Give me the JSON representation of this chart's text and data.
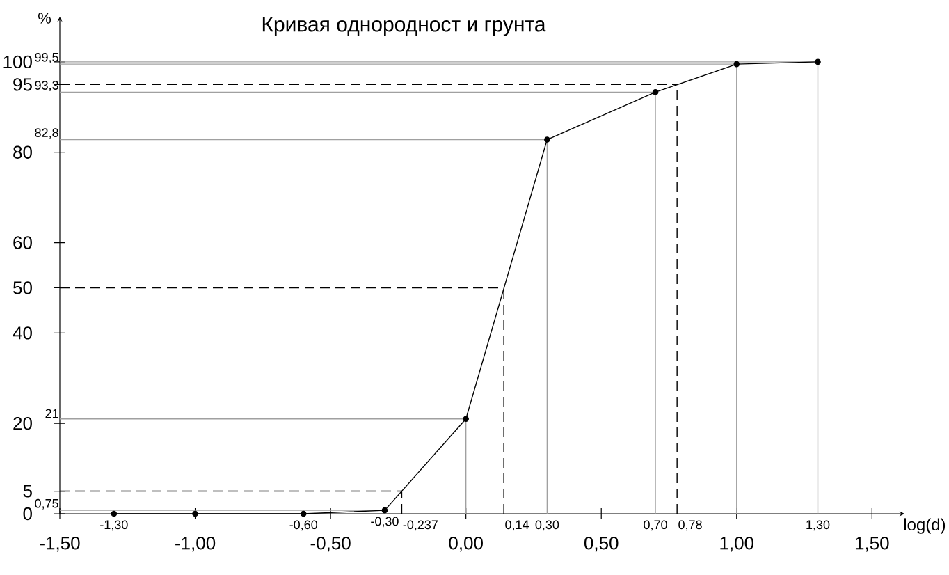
{
  "chart_data": {
    "type": "line",
    "title": "Кривая однородност и грунта",
    "xlabel": "log(d)",
    "ylabel": "%",
    "x": [
      -1.3,
      -1.0,
      -0.6,
      -0.3,
      0.0,
      0.3,
      0.7,
      1.0,
      1.3
    ],
    "series": [
      {
        "color": "#000000",
        "values": [
          0,
          0,
          0,
          0.75,
          21,
          82.8,
          93.3,
          99.5,
          100
        ]
      }
    ],
    "xlim": [
      -1.5,
      1.62
    ],
    "ylim": [
      0,
      110
    ],
    "annotations": [
      {
        "text": "-1,30",
        "x": -1.3,
        "y": 0
      },
      {
        "text": "-0,60",
        "x": -0.6,
        "y": 0
      },
      {
        "text": "-0,30",
        "x": -0.3,
        "y": 0.75
      }
    ],
    "xticks": [
      {
        "value": -1.5,
        "label": "-1,50"
      },
      {
        "value": -1.0,
        "label": "-1,00"
      },
      {
        "value": -0.5,
        "label": "-0,50"
      },
      {
        "value": 0.0,
        "label": "0,00"
      },
      {
        "value": 0.5,
        "label": "0,50"
      },
      {
        "value": 1.0,
        "label": "1,00"
      },
      {
        "value": 1.5,
        "label": "1,50"
      }
    ],
    "yticks": [
      0,
      5,
      20,
      40,
      50,
      60,
      80,
      95,
      100
    ],
    "marker": "circle",
    "line_style": "solid",
    "ref_lines": [
      {
        "axis": "y",
        "value": 0.75,
        "label": "0,75",
        "color": "#a0a0a0",
        "line_style": "solid"
      },
      {
        "axis": "y",
        "value": 21,
        "label": "21",
        "color": "#a0a0a0",
        "line_style": "solid"
      },
      {
        "axis": "y",
        "value": 82.8,
        "label": "82,8",
        "color": "#a0a0a0",
        "line_style": "solid"
      },
      {
        "axis": "y",
        "value": 93.3,
        "label": "93,3",
        "color": "#a0a0a0",
        "line_style": "solid"
      },
      {
        "axis": "y",
        "value": 99.5,
        "label": "99,5",
        "color": "#a0a0a0",
        "line_style": "solid"
      },
      {
        "axis": "y",
        "value": 100,
        "color": "#a0a0a0",
        "line_style": "solid"
      },
      {
        "axis": "y",
        "value": 5,
        "color": "#000000",
        "line_style": "dashed"
      },
      {
        "axis": "y",
        "value": 50,
        "color": "#000000",
        "line_style": "dashed"
      },
      {
        "axis": "y",
        "value": 95,
        "color": "#000000",
        "line_style": "dashed"
      },
      {
        "axis": "x",
        "value": 0.0,
        "color": "#a0a0a0",
        "line_style": "solid"
      },
      {
        "axis": "x",
        "value": 0.3,
        "label": "0,30",
        "color": "#a0a0a0",
        "line_style": "solid"
      },
      {
        "axis": "x",
        "value": 0.7,
        "label": "0,70",
        "color": "#a0a0a0",
        "line_style": "solid"
      },
      {
        "axis": "x",
        "value": 1.0,
        "color": "#a0a0a0",
        "line_style": "solid"
      },
      {
        "axis": "x",
        "value": 1.3,
        "label": "1,30",
        "color": "#a0a0a0",
        "line_style": "solid"
      },
      {
        "axis": "x",
        "value": -0.237,
        "label": "-0,237",
        "color": "#000000",
        "line_style": "dashed"
      },
      {
        "axis": "x",
        "value": 0.14,
        "label": "0,14",
        "color": "#000000",
        "line_style": "dashed"
      },
      {
        "axis": "x",
        "value": 0.78,
        "label": "0,78",
        "color": "#000000",
        "line_style": "dashed"
      }
    ]
  }
}
